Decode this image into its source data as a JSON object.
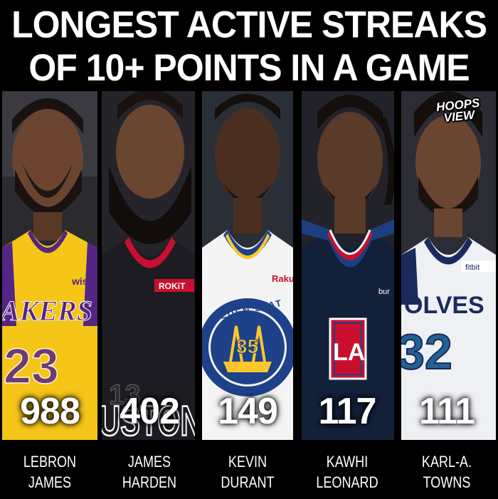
{
  "title": {
    "line1": "LONGEST ACTIVE STREAKS",
    "line2": "OF 10+ POINTS IN A GAME"
  },
  "logo": {
    "line1": "HOOPS",
    "line2": "VIEW"
  },
  "colors": {
    "background": "#000000",
    "text": "#ffffff",
    "lakers_gold": "#f5c518",
    "rockets_red": "#c8102e",
    "warriors_blue": "#1d428a",
    "clippers_navy": "#13203a",
    "wolves_navy": "#1b2a5e"
  },
  "players": [
    {
      "first": "LEBRON",
      "last": "JAMES",
      "streak": "988",
      "jersey_team": "AKERS",
      "jersey_number": "23",
      "jersey_sponsor": "wis",
      "icon": "lakers-jersey-icon"
    },
    {
      "first": "JAMES",
      "last": "HARDEN",
      "streak": "402",
      "jersey_team": "USTON",
      "jersey_number": "13",
      "jersey_sponsor": "ROKiT",
      "icon": "rockets-jersey-icon"
    },
    {
      "first": "KEVIN",
      "last": "DURANT",
      "streak": "149",
      "jersey_team": "OLDEN STAT",
      "jersey_number": "35",
      "jersey_sponsor": "Raku",
      "icon": "warriors-jersey-icon"
    },
    {
      "first": "KAWHI",
      "last": "LEONARD",
      "streak": "117",
      "jersey_team": "LA",
      "jersey_number": "",
      "jersey_sponsor": "bur",
      "icon": "clippers-jersey-icon"
    },
    {
      "first": "KARL-A.",
      "last": "TOWNS",
      "streak": "111",
      "jersey_team": "OLVES",
      "jersey_number": "32",
      "jersey_sponsor": "fitbit",
      "icon": "wolves-jersey-icon"
    }
  ]
}
